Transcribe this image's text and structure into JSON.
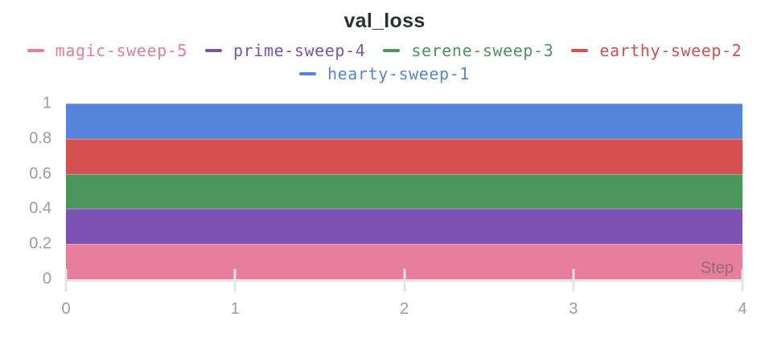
{
  "header": {
    "title": "val_loss"
  },
  "chart_data": {
    "type": "area",
    "title": "val_loss",
    "xlabel": "Step",
    "ylabel": "",
    "x": [
      0,
      1,
      2,
      3,
      4
    ],
    "xlim": [
      0,
      4
    ],
    "ylim": [
      0,
      1
    ],
    "xtick_labels": [
      "0",
      "1",
      "2",
      "3",
      "4"
    ],
    "ytick_labels": [
      "1",
      "0.8",
      "0.6",
      "0.4",
      "0.2",
      "0"
    ],
    "grid": false,
    "legend_position": "top",
    "axis_label_color": "#9b9ba2",
    "axis_line_color": "#e4e4e8",
    "title_color": "#2b3139",
    "series": [
      {
        "name": "magic-sweep-5",
        "color": "#E77E9C",
        "values": [
          0.2,
          0.2,
          0.2,
          0.2,
          0.2
        ]
      },
      {
        "name": "prime-sweep-4",
        "color": "#7C52B3",
        "values": [
          0.4,
          0.4,
          0.4,
          0.4,
          0.4
        ]
      },
      {
        "name": "serene-sweep-3",
        "color": "#4A965C",
        "values": [
          0.6,
          0.6,
          0.6,
          0.6,
          0.6
        ]
      },
      {
        "name": "earthy-sweep-2",
        "color": "#D6504F",
        "values": [
          0.8,
          0.8,
          0.8,
          0.8,
          0.8
        ]
      },
      {
        "name": "hearty-sweep-1",
        "color": "#5585DB",
        "values": [
          1.0,
          1.0,
          1.0,
          1.0,
          1.0
        ]
      }
    ]
  }
}
